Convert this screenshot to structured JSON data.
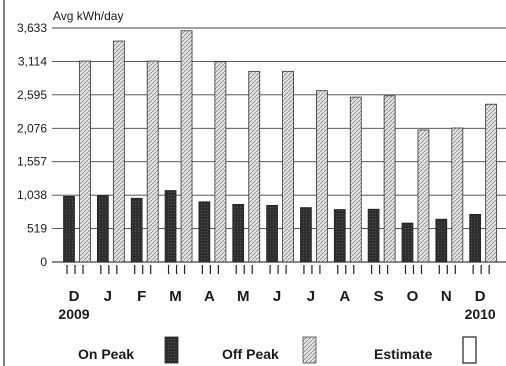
{
  "chart_data": {
    "type": "bar",
    "ylabel": "Avg kWh/day",
    "yticks": [
      0,
      519,
      1038,
      1557,
      2076,
      2595,
      3114,
      3633
    ],
    "ylim": [
      0,
      3633
    ],
    "categories": [
      "D",
      "J",
      "F",
      "M",
      "A",
      "M",
      "J",
      "J",
      "A",
      "S",
      "O",
      "N",
      "D"
    ],
    "year_labels": [
      {
        "category_index": 0,
        "text": "2009"
      },
      {
        "category_index": 12,
        "text": "2010"
      }
    ],
    "series": [
      {
        "name": "On Peak",
        "values": [
          1020,
          1030,
          990,
          1110,
          935,
          895,
          880,
          845,
          815,
          820,
          605,
          665,
          740
        ],
        "color": "#2e2e2e"
      },
      {
        "name": "Off Peak",
        "values": [
          3120,
          3430,
          3120,
          3590,
          3110,
          2960,
          2960,
          2660,
          2560,
          2580,
          2050,
          2080,
          2450
        ],
        "color": "#d6d6d6"
      }
    ],
    "legend": {
      "placement": "bottom",
      "entries": [
        {
          "label": "On Peak",
          "style": "solid-dark"
        },
        {
          "label": "Off Peak",
          "style": "hatched-light"
        },
        {
          "label": "Estimate",
          "style": "outline"
        }
      ]
    },
    "grid": "horizontal"
  }
}
